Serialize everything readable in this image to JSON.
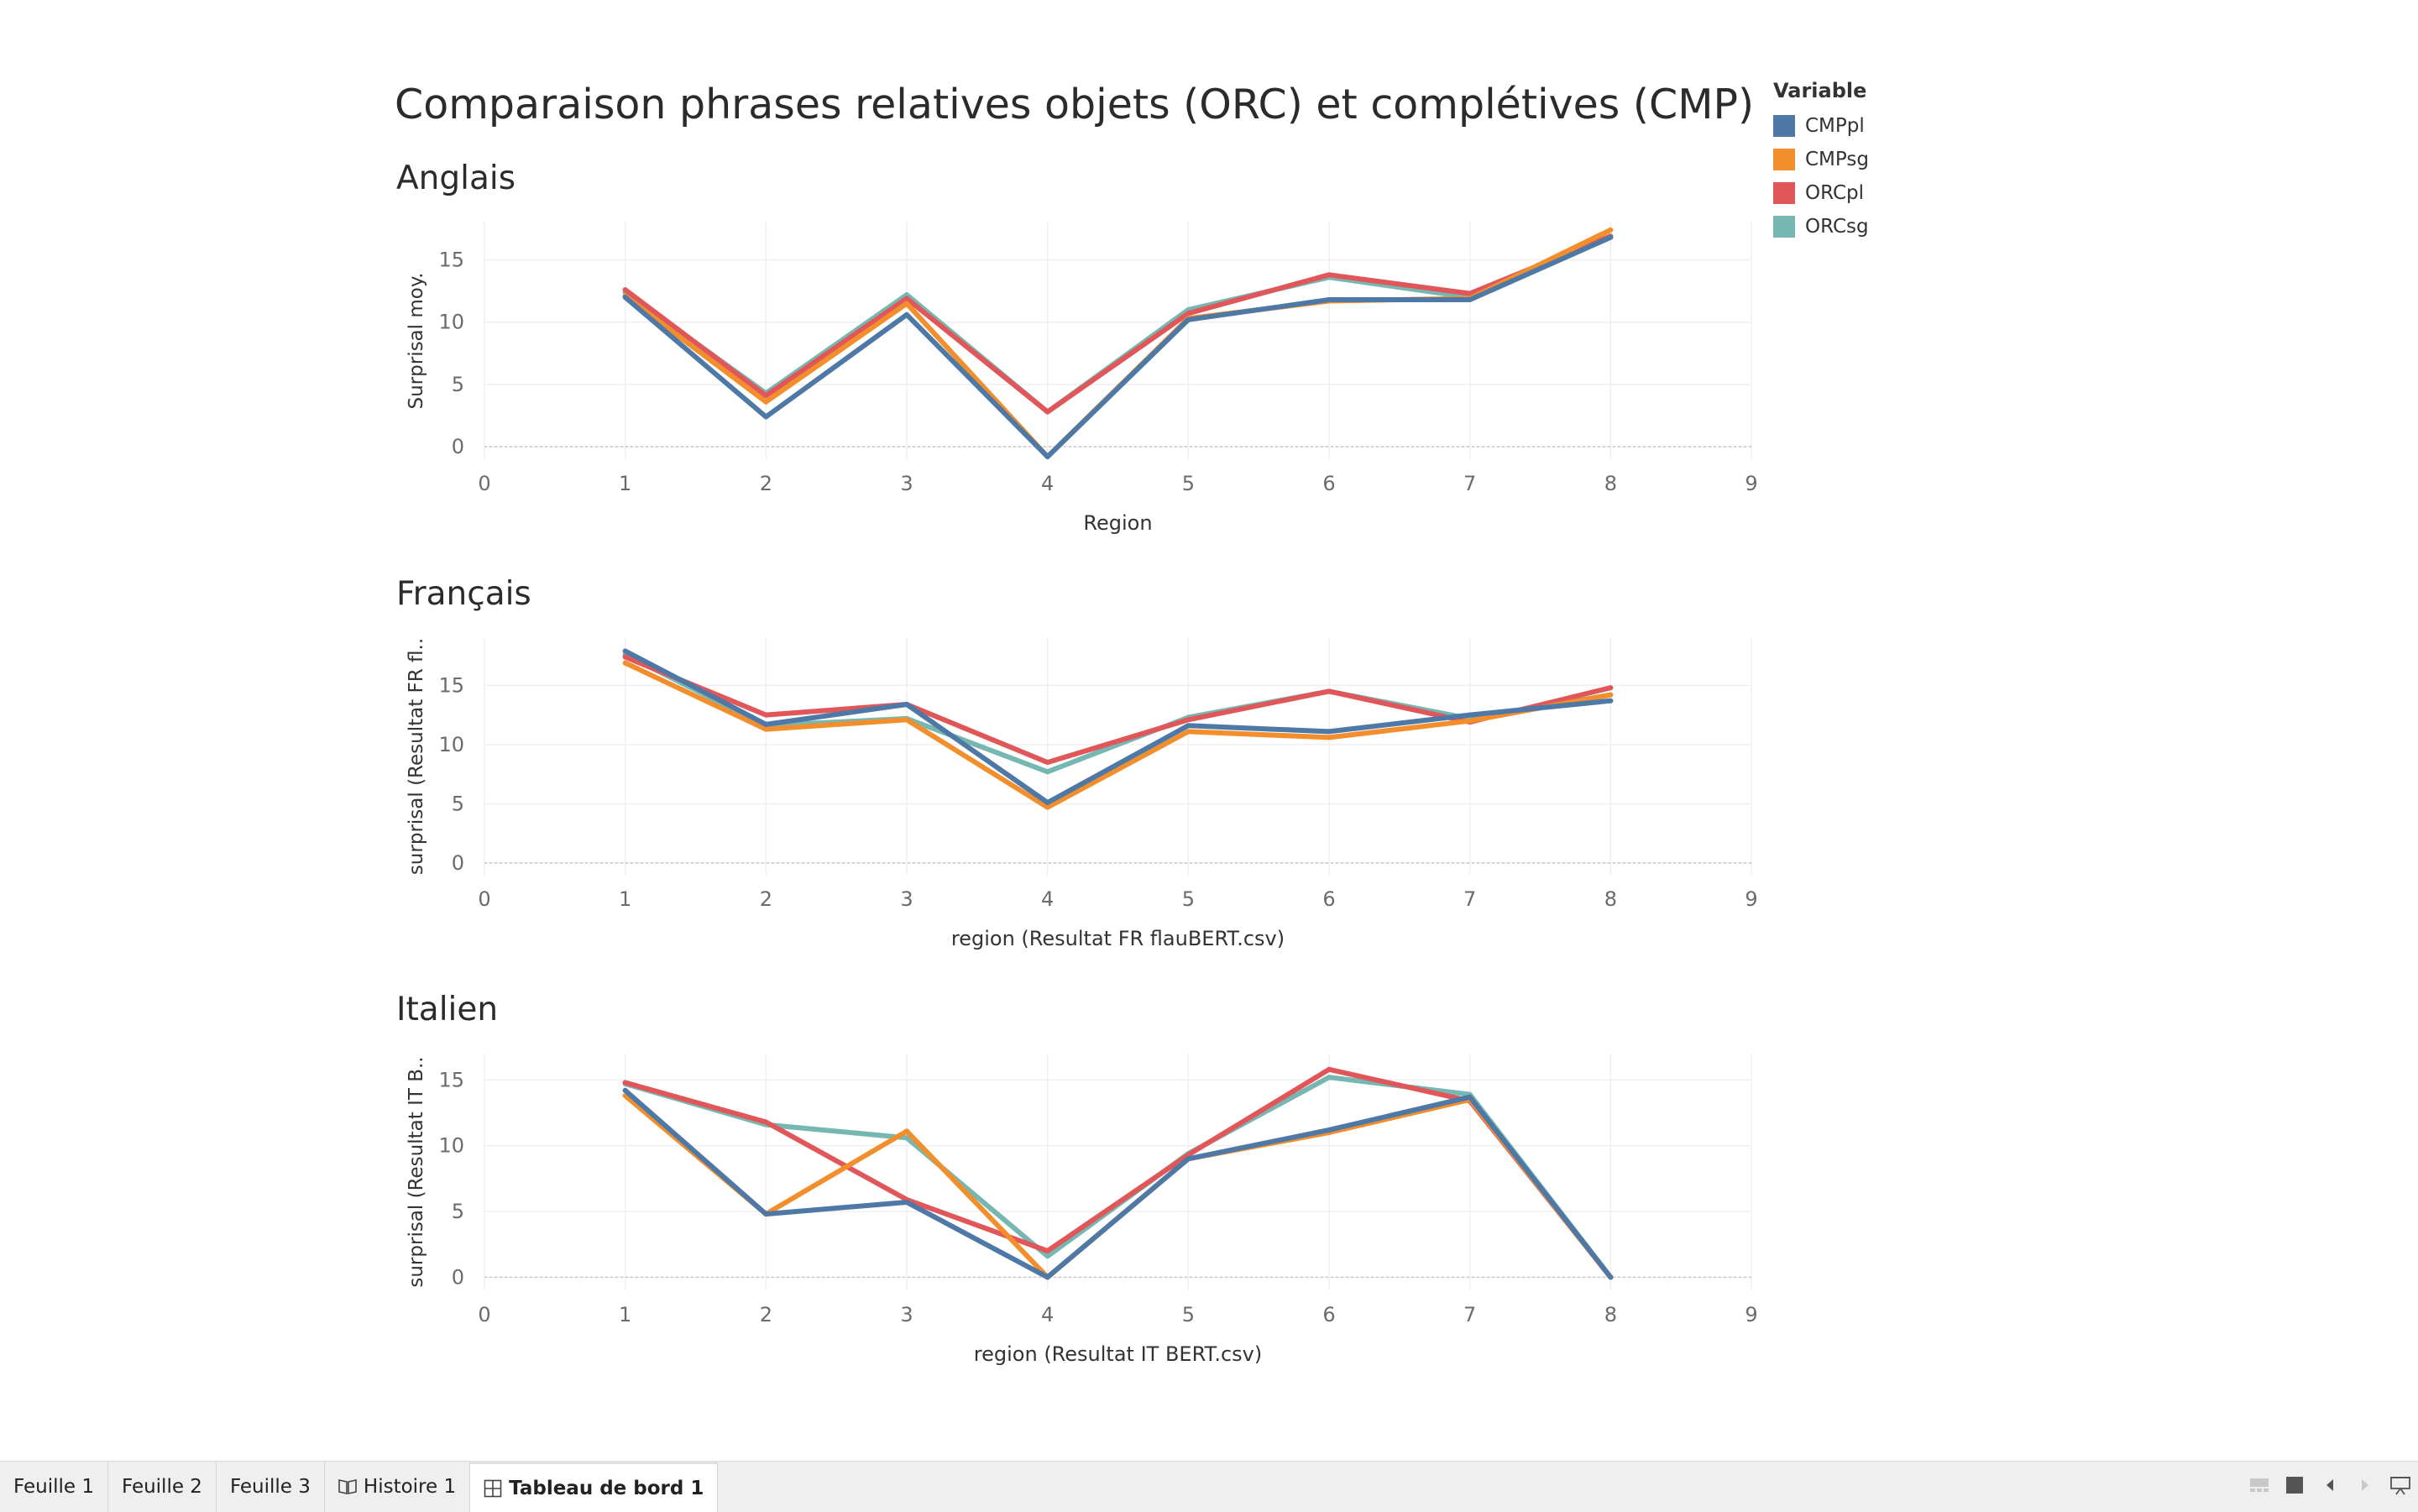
{
  "dashboard": {
    "title": "Comparaison phrases relatives objets (ORC) et complétives (CMP)"
  },
  "legend": {
    "title": "Variable",
    "items": [
      {
        "label": "CMPpl",
        "color": "#4e79a7"
      },
      {
        "label": "CMPsg",
        "color": "#f28e2b"
      },
      {
        "label": "ORCpl",
        "color": "#e15759"
      },
      {
        "label": "ORCsg",
        "color": "#76b7b2"
      }
    ]
  },
  "chart_data": [
    {
      "type": "line",
      "title": "Anglais",
      "xlabel": "Region",
      "ylabel": "Surprisal moy.",
      "xlim": [
        0,
        9
      ],
      "ylim": [
        -1,
        18
      ],
      "x_ticks": [
        0,
        1,
        2,
        3,
        4,
        5,
        6,
        7,
        8,
        9
      ],
      "y_ticks": [
        0,
        5,
        10,
        15
      ],
      "x": [
        1,
        2,
        3,
        4,
        5,
        6,
        7,
        8
      ],
      "grid": true,
      "legend": "top-right",
      "series": [
        {
          "name": "ORCsg",
          "color": "#76b7b2",
          "values": [
            12.4,
            4.3,
            12.2,
            2.8,
            11.0,
            13.6,
            12.0,
            16.9
          ]
        },
        {
          "name": "ORCpl",
          "color": "#e15759",
          "values": [
            12.6,
            4.1,
            11.9,
            2.8,
            10.7,
            13.8,
            12.3,
            16.9
          ]
        },
        {
          "name": "CMPsg",
          "color": "#f28e2b",
          "values": [
            12.1,
            3.6,
            11.5,
            -0.8,
            10.3,
            11.7,
            11.9,
            17.4
          ]
        },
        {
          "name": "CMPpl",
          "color": "#4e79a7",
          "values": [
            12.0,
            2.4,
            10.6,
            -0.8,
            10.2,
            11.8,
            11.8,
            16.8
          ]
        }
      ]
    },
    {
      "type": "line",
      "title": "Français",
      "xlabel": "region (Resultat FR flauBERT.csv)",
      "ylabel": "surprisal (Resultat FR fl..",
      "xlim": [
        0,
        9
      ],
      "ylim": [
        -1,
        19
      ],
      "x_ticks": [
        0,
        1,
        2,
        3,
        4,
        5,
        6,
        7,
        8,
        9
      ],
      "y_ticks": [
        0,
        5,
        10,
        15
      ],
      "x": [
        1,
        2,
        3,
        4,
        5,
        6,
        7,
        8
      ],
      "grid": true,
      "series": [
        {
          "name": "ORCsg",
          "color": "#76b7b2",
          "values": [
            17.6,
            11.6,
            12.2,
            7.7,
            12.3,
            14.5,
            12.2,
            14.2
          ]
        },
        {
          "name": "ORCpl",
          "color": "#e15759",
          "values": [
            17.4,
            12.5,
            13.4,
            8.5,
            12.1,
            14.5,
            11.9,
            14.8
          ]
        },
        {
          "name": "CMPsg",
          "color": "#f28e2b",
          "values": [
            16.9,
            11.3,
            12.1,
            4.7,
            11.1,
            10.6,
            12.0,
            14.2
          ]
        },
        {
          "name": "CMPpl",
          "color": "#4e79a7",
          "values": [
            17.9,
            11.7,
            13.4,
            5.1,
            11.6,
            11.1,
            12.5,
            13.7
          ]
        }
      ]
    },
    {
      "type": "line",
      "title": "Italien",
      "xlabel": "region (Resultat IT BERT.csv)",
      "ylabel": "surprisal (Resultat IT B..",
      "xlim": [
        0,
        9
      ],
      "ylim": [
        -1,
        17
      ],
      "x_ticks": [
        0,
        1,
        2,
        3,
        4,
        5,
        6,
        7,
        8,
        9
      ],
      "y_ticks": [
        0,
        5,
        10,
        15
      ],
      "x": [
        1,
        2,
        3,
        4,
        5,
        6,
        7,
        8
      ],
      "grid": true,
      "series": [
        {
          "name": "ORCsg",
          "color": "#76b7b2",
          "values": [
            14.7,
            11.6,
            10.6,
            1.6,
            9.4,
            15.2,
            13.9,
            0
          ]
        },
        {
          "name": "ORCpl",
          "color": "#e15759",
          "values": [
            14.8,
            11.8,
            5.9,
            2.0,
            9.3,
            15.8,
            13.4,
            0
          ]
        },
        {
          "name": "CMPsg",
          "color": "#f28e2b",
          "values": [
            13.8,
            4.8,
            11.1,
            0,
            9.0,
            11.0,
            13.5,
            0
          ]
        },
        {
          "name": "CMPpl",
          "color": "#4e79a7",
          "values": [
            14.2,
            4.8,
            5.7,
            0,
            9.0,
            11.2,
            13.7,
            0
          ]
        }
      ]
    }
  ],
  "sheet_tabs": [
    {
      "label": "Feuille 1",
      "icon": "",
      "active": false
    },
    {
      "label": "Feuille 2",
      "icon": "",
      "active": false
    },
    {
      "label": "Feuille 3",
      "icon": "",
      "active": false
    },
    {
      "label": "Histoire 1",
      "icon": "story-icon",
      "active": false
    },
    {
      "label": "Tableau de bord 1",
      "icon": "dashboard-icon",
      "active": true
    }
  ],
  "nav_controls": [
    {
      "name": "show-filmstrip-icon"
    },
    {
      "name": "show-sheet-icon"
    },
    {
      "name": "previous-sheet-icon"
    },
    {
      "name": "next-sheet-icon"
    },
    {
      "name": "presentation-mode-icon"
    }
  ]
}
